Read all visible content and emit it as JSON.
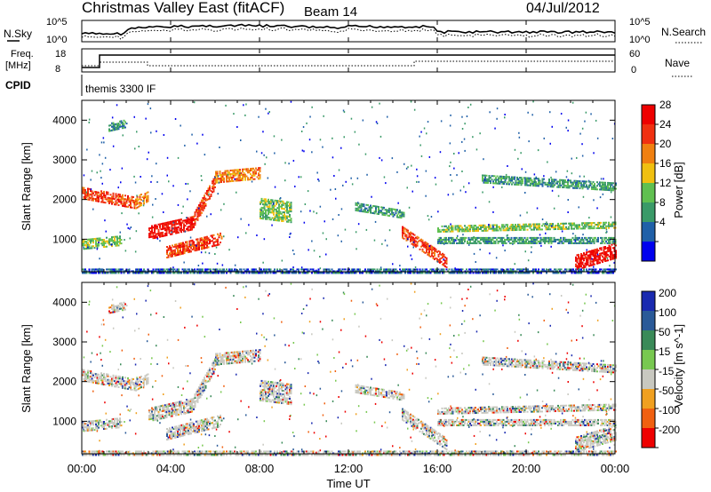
{
  "header": {
    "title": "Christmas Valley East (fitACF)",
    "beam": "Beam 14",
    "date": "04/Jul/2012"
  },
  "panels": {
    "nsky_label": "N.Sky",
    "nsearch_label": "N.Search",
    "noise_ticks_left": [
      "10^5",
      "10^0"
    ],
    "noise_ticks_right": [
      "10^5",
      "10^0"
    ],
    "freq_label_top": "Freq.",
    "freq_label_bottom": "[MHz]",
    "freq_ticks": [
      "18",
      "8"
    ],
    "nave_label": "Nave",
    "nave_ticks": [
      "60",
      "0"
    ],
    "cpid_label": "CPID",
    "cpid_value": "themis 3300 IF"
  },
  "colors": {
    "power": [
      "#0000ee",
      "#2060a8",
      "#3a9a68",
      "#60c050",
      "#f0c010",
      "#f08010",
      "#f03010",
      "#ee0000"
    ],
    "velocity": [
      "#1a2ab0",
      "#2a5a98",
      "#3a8a58",
      "#78c850",
      "#c8c8c0",
      "#f0a020",
      "#f06010",
      "#ee0000"
    ],
    "ground_scatter": "#c0c0b8"
  },
  "chart_data": [
    {
      "type": "heatmap",
      "name_key": "power",
      "ylabel": "Slant Range [km]",
      "xlabel": "",
      "x_ticks": [
        "00:00",
        "04:00",
        "08:00",
        "12:00",
        "16:00",
        "20:00",
        "00:00"
      ],
      "x_range_hours": [
        0,
        24
      ],
      "y_ticks": [
        "1000",
        "2000",
        "3000",
        "4000"
      ],
      "y_range_km": [
        180,
        4500
      ],
      "colorbar_label": "Power [dB]",
      "colorbar_ticks": [
        "28",
        "24",
        "20",
        "16",
        "12",
        "8",
        "4"
      ]
    },
    {
      "type": "heatmap",
      "name_key": "velocity",
      "ylabel": "Slant Range [km]",
      "xlabel": "Time UT",
      "x_ticks": [
        "00:00",
        "04:00",
        "08:00",
        "12:00",
        "16:00",
        "20:00",
        "00:00"
      ],
      "x_range_hours": [
        0,
        24
      ],
      "y_ticks": [
        "1000",
        "2000",
        "3000",
        "4000"
      ],
      "y_range_km": [
        180,
        4500
      ],
      "colorbar_label": "Velocity [m s^-1]",
      "colorbar_ticks": [
        "200",
        "100",
        "50",
        "15",
        "-15",
        "-50",
        "-100",
        "-200"
      ]
    }
  ]
}
